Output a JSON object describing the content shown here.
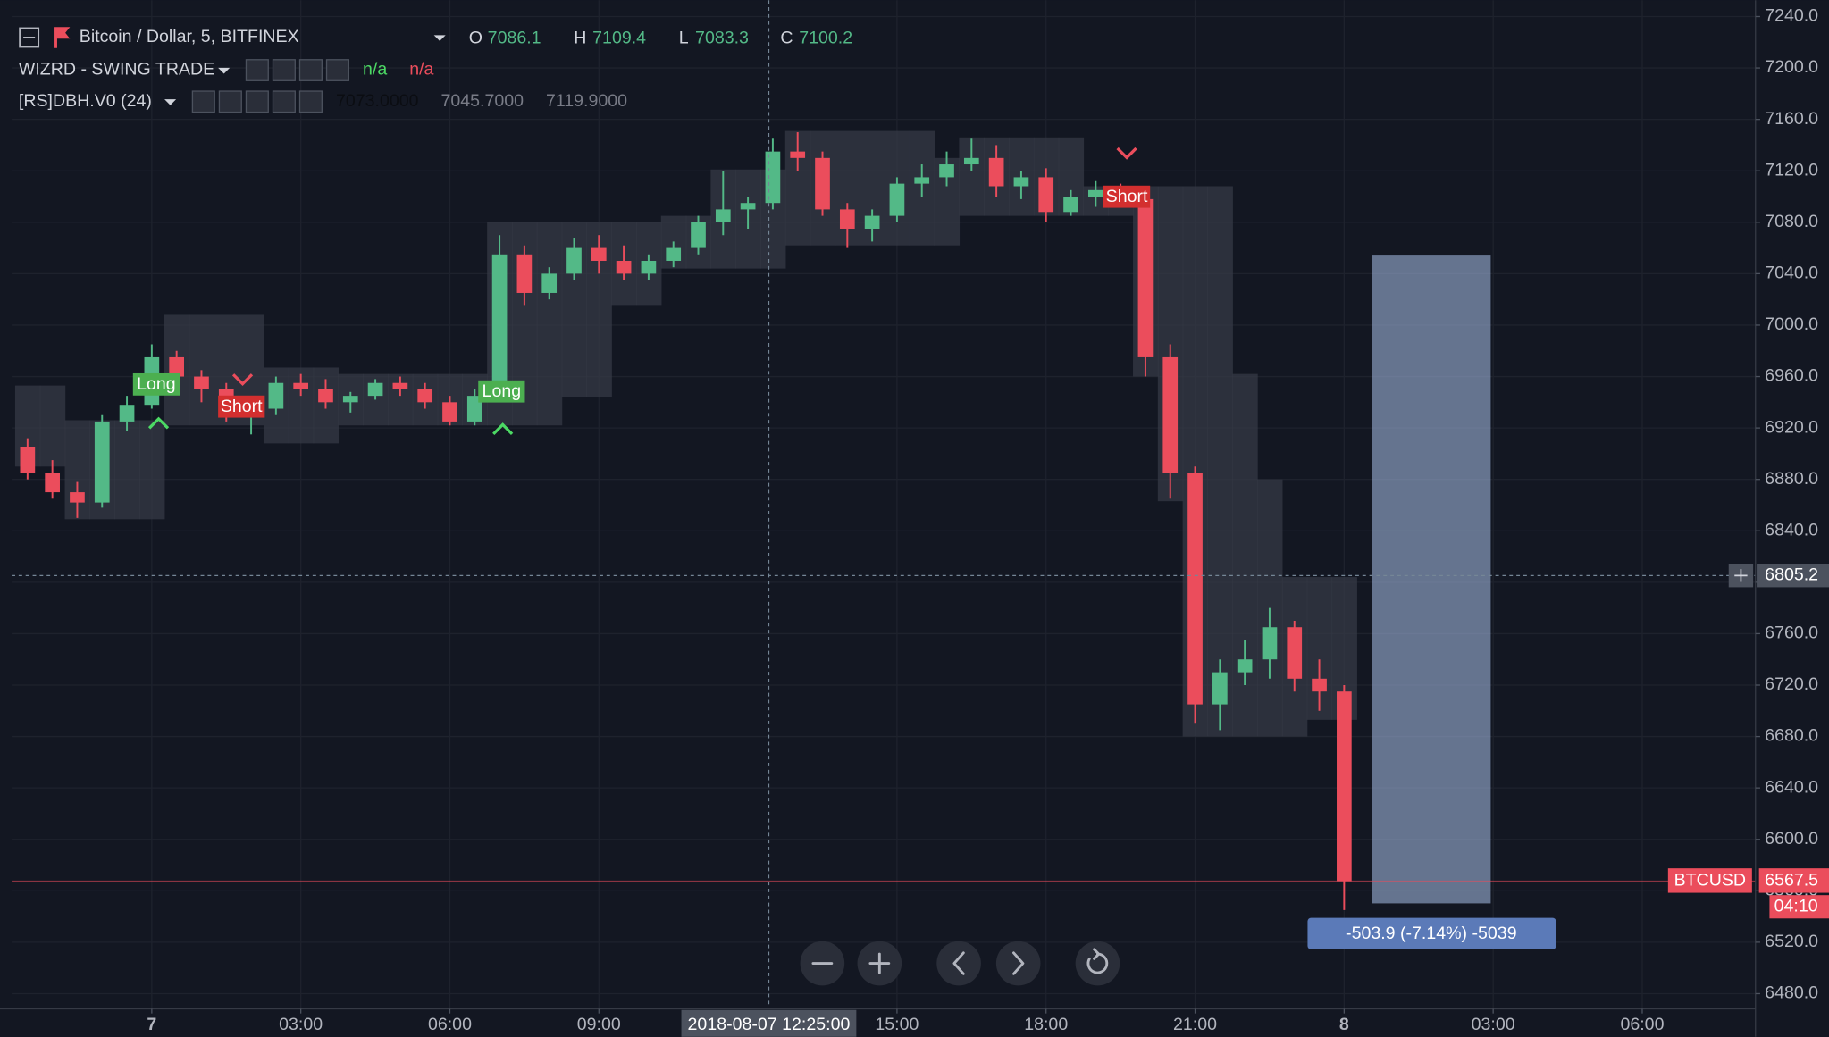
{
  "chart_data": {
    "type": "candlestick",
    "title": "Bitcoin / Dollar, 5, BITFINEX",
    "ohlc_header": {
      "labels": [
        "O",
        "H",
        "L",
        "C"
      ],
      "values": [
        "7086.1",
        "7109.4",
        "7083.3",
        "7100.2"
      ]
    },
    "indicators": [
      {
        "name": "WIZRD - SWING TRADE",
        "values": [
          "n/a",
          "n/a"
        ]
      },
      {
        "name": "[RS]DBH.V0 (24)",
        "values": [
          "7073.0000",
          "7045.7000",
          "7119.9000"
        ]
      }
    ],
    "x": [
      -2.5,
      -2,
      -1.5,
      -1,
      -0.5,
      0,
      0.5,
      1,
      1.5,
      2,
      2.5,
      3,
      3.5,
      4,
      4.5,
      5,
      5.5,
      6,
      6.5,
      7,
      7.5,
      8,
      8.5,
      9,
      9.5,
      10,
      10.5,
      11,
      11.5,
      12,
      12.5,
      13,
      13.5,
      14,
      14.5,
      15,
      15.5,
      16,
      16.5,
      17,
      17.5,
      18,
      18.5,
      19,
      19.5,
      20,
      20.5,
      21,
      21.5,
      22,
      22.5,
      23,
      23.5,
      24
    ],
    "open": [
      6905,
      6885,
      6870,
      6862,
      6925,
      6938,
      6975,
      6960,
      6950,
      6930,
      6935,
      6955,
      6950,
      6940,
      6945,
      6955,
      6950,
      6940,
      6925,
      6945,
      7055,
      7025,
      7040,
      7060,
      7050,
      7040,
      7050,
      7060,
      7080,
      7090,
      7095,
      7135,
      7130,
      7090,
      7075,
      7085,
      7110,
      7115,
      7125,
      7130,
      7108,
      7115,
      7088,
      7100,
      7105,
      7098,
      6975,
      6885,
      6705,
      6730,
      6740,
      6765,
      6725,
      6715
    ],
    "high": [
      6912,
      6895,
      6878,
      6930,
      6945,
      6985,
      6980,
      6965,
      6955,
      6940,
      6960,
      6962,
      6958,
      6948,
      6958,
      6960,
      6955,
      6945,
      6950,
      7070,
      7062,
      7045,
      7068,
      7070,
      7062,
      7055,
      7065,
      7085,
      7120,
      7100,
      7145,
      7150,
      7135,
      7095,
      7090,
      7115,
      7125,
      7135,
      7145,
      7140,
      7120,
      7122,
      7105,
      7112,
      7110,
      7100,
      6985,
      6890,
      6740,
      6755,
      6780,
      6770,
      6740,
      6720
    ],
    "low": [
      6880,
      6865,
      6850,
      6858,
      6918,
      6935,
      6950,
      6940,
      6925,
      6915,
      6930,
      6945,
      6935,
      6932,
      6942,
      6945,
      6935,
      6922,
      6922,
      6940,
      7015,
      7020,
      7035,
      7040,
      7035,
      7035,
      7045,
      7055,
      7070,
      7075,
      7090,
      7120,
      7085,
      7060,
      7065,
      7080,
      7100,
      7108,
      7120,
      7100,
      7098,
      7080,
      7085,
      7092,
      7095,
      6960,
      6865,
      6690,
      6685,
      6720,
      6725,
      6715,
      6700,
      6545
    ],
    "close": [
      6885,
      6870,
      6862,
      6925,
      6938,
      6975,
      6960,
      6950,
      6930,
      6935,
      6955,
      6950,
      6940,
      6945,
      6955,
      6950,
      6940,
      6925,
      6945,
      7055,
      7025,
      7040,
      7060,
      7050,
      7040,
      7050,
      7060,
      7080,
      7090,
      7095,
      7135,
      7130,
      7090,
      7075,
      7085,
      7110,
      7115,
      7125,
      7130,
      7108,
      7115,
      7088,
      7100,
      7105,
      7098,
      6975,
      6885,
      6705,
      6730,
      6740,
      6765,
      6725,
      6715,
      6567.5
    ],
    "up_color": "#53b987",
    "down_color": "#eb4d5c",
    "band": {
      "color": "#363a45",
      "upper": [
        6953,
        6953,
        6926,
        6926,
        6926,
        6926,
        7008,
        7008,
        7008,
        7008,
        6967,
        6967,
        6967,
        6962,
        6962,
        6962,
        6962,
        6962,
        6962,
        7080,
        7080,
        7080,
        7080,
        7080,
        7080,
        7080,
        7085,
        7085,
        7121,
        7121,
        7121,
        7151,
        7151,
        7151,
        7151,
        7151,
        7151,
        7130,
        7146,
        7146,
        7146,
        7146,
        7146,
        7108,
        7108,
        7108,
        7108,
        7108,
        7108,
        6962,
        6880,
        6804,
        6804,
        6804
      ],
      "lower": [
        6890,
        6890,
        6849,
        6849,
        6849,
        6849,
        6922,
        6922,
        6922,
        6922,
        6908,
        6908,
        6908,
        6922,
        6922,
        6922,
        6922,
        6922,
        6922,
        6922,
        6922,
        6922,
        6944,
        6944,
        7015,
        7015,
        7044,
        7044,
        7044,
        7044,
        7044,
        7062,
        7062,
        7062,
        7062,
        7062,
        7062,
        7062,
        7085,
        7085,
        7085,
        7085,
        7085,
        7085,
        7085,
        6960,
        6863,
        6680,
        6680,
        6680,
        6680,
        6680,
        6693,
        6693
      ]
    },
    "signals": [
      "Long",
      "Short",
      "Long",
      "Short"
    ],
    "xlim": [
      -2.82,
      32.28
    ],
    "xticks": [
      {
        "value": 0,
        "label": "7"
      },
      {
        "value": 3,
        "label": "03:00"
      },
      {
        "value": 6,
        "label": "06:00"
      },
      {
        "value": 9,
        "label": "09:00"
      },
      {
        "value": 15,
        "label": "15:00"
      },
      {
        "value": 18,
        "label": "18:00"
      },
      {
        "value": 21,
        "label": "21:00"
      },
      {
        "value": 24,
        "label": "8"
      },
      {
        "value": 27,
        "label": "03:00"
      },
      {
        "value": 30,
        "label": "06:00"
      }
    ],
    "ylim": [
      6468.2,
      7252.7
    ],
    "yticks": [
      {
        "value": 7240,
        "label": "7240.0"
      },
      {
        "value": 7200,
        "label": "7200.0"
      },
      {
        "value": 7160,
        "label": "7160.0"
      },
      {
        "value": 7120,
        "label": "7120.0"
      },
      {
        "value": 7080,
        "label": "7080.0"
      },
      {
        "value": 7040,
        "label": "7040.0"
      },
      {
        "value": 7000,
        "label": "7000.0"
      },
      {
        "value": 6960,
        "label": "6960.0"
      },
      {
        "value": 6920,
        "label": "6920.0"
      },
      {
        "value": 6880,
        "label": "6880.0"
      },
      {
        "value": 6840,
        "label": "6840.0"
      },
      {
        "value": 6800,
        "label": "6800.0"
      },
      {
        "value": 6760,
        "label": "6760.0"
      },
      {
        "value": 6720,
        "label": "6720.0"
      },
      {
        "value": 6680,
        "label": "6680.0"
      },
      {
        "value": 6640,
        "label": "6640.0"
      },
      {
        "value": 6600,
        "label": "6600.0"
      },
      {
        "value": 6560,
        "label": "6560.0"
      },
      {
        "value": 6520,
        "label": "6520.0"
      },
      {
        "value": 6480,
        "label": "6480.0"
      }
    ],
    "grid": true,
    "crosshair": {
      "x_label": "2018-08-07 12:25:00",
      "x": 12.42,
      "y": 6805.2
    },
    "last_price": {
      "symbol": "BTCUSD",
      "value": 6567.5,
      "countdown": "04:10"
    },
    "measure": {
      "from": 7054.1,
      "to": 6550.2,
      "label": "-503.9 (-7.14%) -5039"
    }
  }
}
